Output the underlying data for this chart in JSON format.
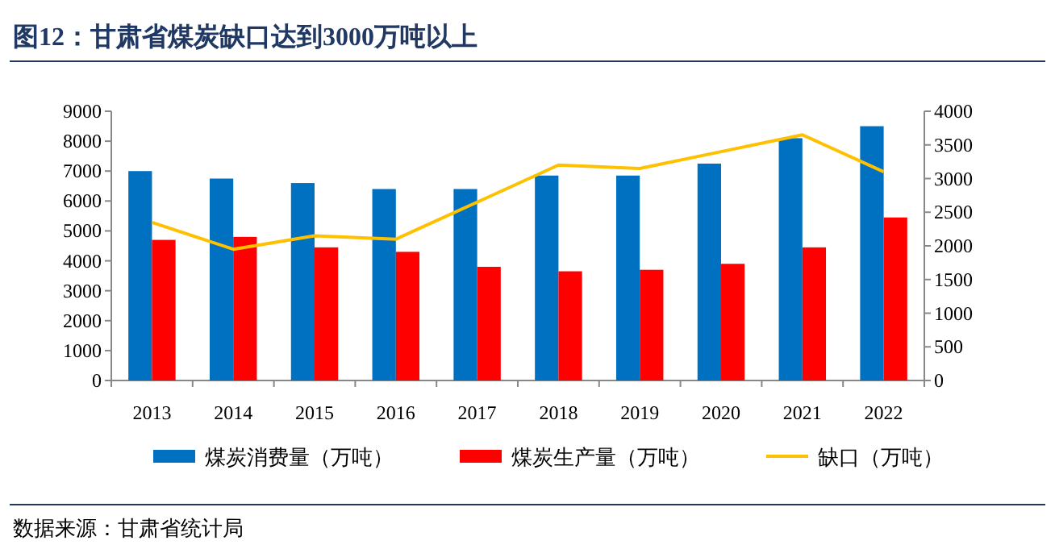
{
  "chart_data": {
    "type": "bar",
    "title": "图12：甘肃省煤炭缺口达到3000万吨以上",
    "categories": [
      "2013",
      "2014",
      "2015",
      "2016",
      "2017",
      "2018",
      "2019",
      "2020",
      "2021",
      "2022"
    ],
    "series": [
      {
        "name": "煤炭消费量（万吨）",
        "color": "#0070c0",
        "values": [
          7000,
          6750,
          6600,
          6400,
          6400,
          6850,
          6850,
          7250,
          8100,
          8500
        ]
      },
      {
        "name": "煤炭生产量（万吨）",
        "color": "#ff0000",
        "values": [
          4700,
          4800,
          4450,
          4300,
          3800,
          3650,
          3700,
          3900,
          4450,
          5450
        ]
      },
      {
        "name": "缺口（万吨）",
        "color": "#ffc000",
        "type": "line",
        "axis": "y2",
        "values": [
          2350,
          1950,
          2150,
          2100,
          2650,
          3200,
          3150,
          3400,
          3650,
          3100
        ]
      }
    ],
    "ylim": [
      0,
      9000
    ],
    "yticks": [
      0,
      1000,
      2000,
      3000,
      4000,
      5000,
      6000,
      7000,
      8000,
      9000
    ],
    "y2lim": [
      0,
      4000
    ],
    "y2ticks": [
      0,
      500,
      1000,
      1500,
      2000,
      2500,
      3000,
      3500,
      4000
    ],
    "legend": "bottom",
    "grid": false,
    "annotations": [
      "数据来源：甘肃省统计局"
    ]
  }
}
